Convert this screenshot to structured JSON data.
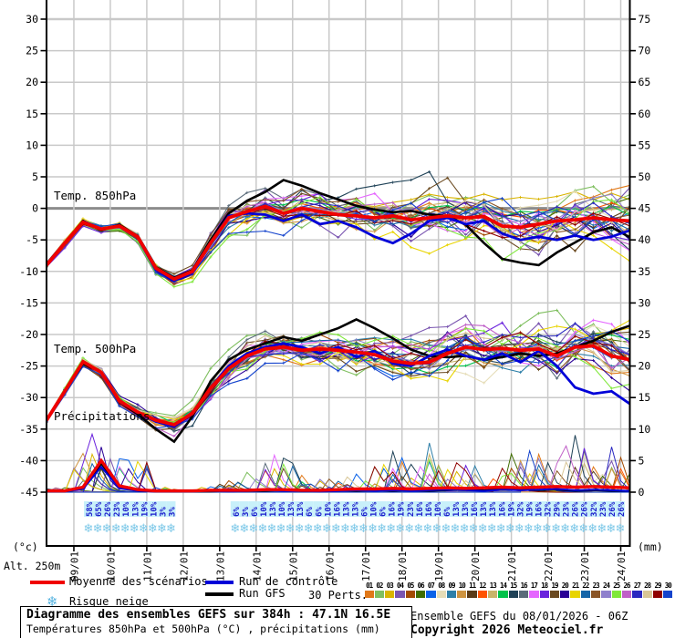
{
  "header": {},
  "axis": {
    "left_unit": "(°c)",
    "alt_label": "Alt. 250m",
    "right_unit": "(mm)",
    "left_ticks": [
      30,
      25,
      20,
      15,
      10,
      5,
      0,
      -5,
      -10,
      -15,
      -20,
      -25,
      -30,
      -35,
      -40,
      -45
    ],
    "right_ticks": [
      75,
      70,
      65,
      60,
      55,
      50,
      45,
      40,
      35,
      30,
      25,
      20,
      15,
      10,
      5,
      0
    ],
    "date_labels": [
      "09/01",
      "10/01",
      "11/01",
      "12/01",
      "13/01",
      "14/01",
      "15/01",
      "16/01",
      "17/01",
      "18/01",
      "19/01",
      "20/01",
      "21/01",
      "22/01",
      "23/01",
      "24/01"
    ]
  },
  "panel_labels": {
    "t850": "Temp. 850hPa",
    "t500": "Temp. 500hPa",
    "precip": "Précipitations"
  },
  "legend": {
    "mean": "Moyenne des scénarios",
    "control": "Run de contrôle",
    "gfs": "Run GFS",
    "perts": "30 Perts.",
    "snow": "Risque neige",
    "snowflake": "❄"
  },
  "title_box": {
    "line1": "Diagramme des ensembles GEFS sur 384h : 47.1N 16.5E",
    "line2": "Températures 850hPa et 500hPa (°C) , précipitations (mm)"
  },
  "footer_right": {
    "line1": "Ensemble GEFS du 08/01/2026 - 06Z",
    "line2": "Copyright 2026 Meteociel.fr"
  },
  "colors": {
    "mean": "#f00000",
    "control": "#0000d8",
    "gfs": "#000000",
    "grid": "#c9c9c9",
    "zero_line": "#8c8c8c",
    "snow_text": "#1a1acc",
    "snow_highlight": "#c8f0fa",
    "snowflake": "#7cc8e8",
    "pert_colors": [
      "#e07818",
      "#7fbf5f",
      "#d9b400",
      "#7a55b0",
      "#a34a00",
      "#3f6d00",
      "#0a62e8",
      "#e6ddb8",
      "#2e7fa8",
      "#cf9440",
      "#5a3a16",
      "#ff5400",
      "#c9b46a",
      "#00c24a",
      "#1f4257",
      "#5a6b7a",
      "#e566ff",
      "#6a22dd",
      "#6b4a20",
      "#2a0096",
      "#e8d400",
      "#1565a8",
      "#8a5526",
      "#8f80cc",
      "#7fe83a",
      "#c060c8",
      "#2a28c0",
      "#d8c696",
      "#8f0000",
      "#1443cc"
    ]
  },
  "pert_numbers": [
    "01",
    "02",
    "03",
    "04",
    "05",
    "06",
    "07",
    "08",
    "09",
    "10",
    "11",
    "12",
    "13",
    "14",
    "15",
    "16",
    "17",
    "18",
    "19",
    "20",
    "21",
    "22",
    "23",
    "24",
    "25",
    "26",
    "27",
    "28",
    "29",
    "30"
  ],
  "chart_data": {
    "type": "line",
    "title": "Diagramme des ensembles GEFS sur 384h : 47.1N 16.5E",
    "run": "GEFS 08/01/2026 06Z",
    "x_axis": {
      "total_hours": 384,
      "hours_step": 12,
      "first_date_hour": 18,
      "date_step_hours": 24
    },
    "y_left": {
      "label": "(°c)",
      "min": -45,
      "max": 30
    },
    "y_right": {
      "label": "(mm)",
      "min": 0,
      "max": 75
    },
    "series": [
      {
        "name": "mean_850",
        "panel": "t850",
        "values": [
          -9,
          -5.5,
          -2.2,
          -3.3,
          -2.8,
          -4.5,
          -9.5,
          -11.2,
          -10,
          -5.5,
          -1.5,
          -0.5,
          0.3,
          -0.8,
          0,
          -0.5,
          -1,
          -1.2,
          -1.5,
          -1.2,
          -1.8,
          -1.5,
          -1.2,
          -1.5,
          -1.3,
          -2.8,
          -3,
          -2.5,
          -2,
          -1.8,
          -1.5,
          -1.8,
          -2
        ]
      },
      {
        "name": "control_850",
        "panel": "t850",
        "values": [
          -9,
          -5.5,
          -2.2,
          -3.3,
          -2.8,
          -4.6,
          -9.7,
          -11.5,
          -10.2,
          -5.5,
          -1.2,
          -0.8,
          -1,
          -2,
          -1,
          -2.5,
          -2,
          -3,
          -4.5,
          -5.5,
          -4,
          -2,
          -1.5,
          -2.5,
          -2,
          -4,
          -5,
          -4.5,
          -5,
          -4.3,
          -5,
          -4.5,
          -3.5
        ]
      },
      {
        "name": "gfs_850",
        "panel": "t850",
        "values": [
          -9,
          -5.4,
          -2,
          -3.5,
          -2.6,
          -4.4,
          -9.3,
          -11,
          -9.8,
          -5,
          -0.8,
          1.2,
          2.6,
          4.5,
          3.6,
          2.4,
          1.4,
          0.4,
          -0.2,
          -0.6,
          -0.4,
          -1,
          -1.2,
          -2.6,
          -5.5,
          -8,
          -8.6,
          -9,
          -7,
          -5.4,
          -3.8,
          -3,
          -4.6
        ]
      },
      {
        "name": "mean_500",
        "panel": "t500",
        "values": [
          -33.6,
          -29,
          -24.3,
          -26,
          -30.5,
          -32.3,
          -33.6,
          -34.3,
          -32.5,
          -28.5,
          -25.4,
          -23.4,
          -22.3,
          -22,
          -22.5,
          -22.3,
          -22.5,
          -22.8,
          -23.2,
          -24.2,
          -24.6,
          -24.4,
          -23,
          -22,
          -22.4,
          -22.2,
          -22.5,
          -22.3,
          -23.4,
          -22,
          -21.8,
          -23.4,
          -24
        ]
      },
      {
        "name": "control_500",
        "panel": "t500",
        "values": [
          -33.6,
          -29,
          -24.3,
          -26,
          -30.6,
          -32.4,
          -33.8,
          -34.6,
          -32.6,
          -28.4,
          -25,
          -23,
          -22,
          -21.4,
          -22,
          -23,
          -22,
          -23.6,
          -22.6,
          -24.6,
          -25,
          -23.4,
          -22.4,
          -23.4,
          -24,
          -23,
          -24.4,
          -22.6,
          -25,
          -28.4,
          -29.4,
          -29,
          -31
        ]
      },
      {
        "name": "gfs_500",
        "panel": "t500",
        "values": [
          -33.6,
          -29,
          -24.6,
          -26,
          -30.6,
          -32.6,
          -35,
          -37,
          -33,
          -27.4,
          -24,
          -22.4,
          -21.4,
          -20.4,
          -21,
          -20,
          -19,
          -17.6,
          -19,
          -20.6,
          -22.4,
          -23.4,
          -23.6,
          -23.4,
          -24,
          -23.6,
          -23,
          -23.4,
          -23,
          -22,
          -21,
          -19.6,
          -18.6
        ]
      },
      {
        "name": "mean_precip",
        "panel": "precip",
        "values": [
          0.2,
          0.2,
          0.8,
          5,
          1,
          0.4,
          0.2,
          0.2,
          0.2,
          0.3,
          0.3,
          0.3,
          0.4,
          0.4,
          0.3,
          0.3,
          0.4,
          0.5,
          0.5,
          0.6,
          0.5,
          0.6,
          0.7,
          0.6,
          0.7,
          0.8,
          0.7,
          0.8,
          0.9,
          0.8,
          0.9,
          0.8,
          0.7
        ]
      },
      {
        "name": "control_precip",
        "panel": "precip",
        "values": [
          0.1,
          0.1,
          0.5,
          4,
          0.6,
          0.2,
          0.1,
          0.1,
          0.1,
          0.2,
          0.1,
          0.2,
          0.3,
          0.2,
          0.2,
          0.1,
          0.2,
          0.3,
          0.2,
          0.3,
          0.2,
          0.3,
          0.4,
          0.3,
          0.2,
          0.4,
          0.3,
          0.4,
          0.5,
          0.3,
          0.4,
          0.3,
          0.2
        ]
      },
      {
        "name": "gfs_precip",
        "panel": "precip",
        "values": [
          0.1,
          0.1,
          0.6,
          4.5,
          0.8,
          0.2,
          0.1,
          0.1,
          0.1,
          0.1,
          0.2,
          0.2,
          0.2,
          0.3,
          0.2,
          0.2,
          0.3,
          0.2,
          0.3,
          0.2,
          0.3,
          0.2,
          0.3,
          0.4,
          0.3,
          0.5,
          0.4,
          0.3,
          0.4,
          0.2,
          0.3,
          0.2,
          0.2
        ]
      }
    ],
    "ensemble": {
      "count": 30,
      "spread_850": [
        0.6,
        0.9,
        1,
        1,
        1.1,
        1.3,
        1.5,
        1.5,
        1.6,
        2.2,
        2.8,
        3.2,
        3.5,
        3.6,
        4,
        4,
        4,
        4.2,
        4.5,
        4.5,
        4.6,
        5,
        5,
        5,
        5.2,
        5.5,
        5.5,
        5.5,
        5.6,
        6,
        6,
        6.5,
        6.5
      ],
      "spread_500": [
        0.5,
        0.7,
        0.8,
        1,
        1.1,
        1.2,
        1.6,
        2,
        2.2,
        2.6,
        3,
        3.4,
        3.5,
        3.5,
        3.6,
        3.6,
        4,
        4,
        4.2,
        4.5,
        4.5,
        4.5,
        4.6,
        5,
        5,
        5,
        5,
        5.2,
        5.5,
        5.5,
        5.5,
        6,
        6
      ],
      "precip_potential": [
        1,
        2,
        6,
        10,
        5,
        8,
        1,
        0.5,
        0.5,
        1,
        2,
        3,
        6,
        5,
        3,
        2,
        2,
        3,
        4,
        6,
        4,
        8,
        4,
        5,
        3,
        5,
        7,
        6,
        5,
        8,
        5,
        7,
        3
      ]
    },
    "snow_risk_pct": [
      [
        0,
        58
      ],
      [
        1,
        65
      ],
      [
        2,
        26
      ],
      [
        3,
        23
      ],
      [
        4,
        10
      ],
      [
        5,
        13
      ],
      [
        6,
        19
      ],
      [
        7,
        10
      ],
      [
        8,
        3
      ],
      [
        9,
        3
      ],
      [
        16,
        6
      ],
      [
        17,
        3
      ],
      [
        18,
        6
      ],
      [
        19,
        10
      ],
      [
        20,
        13
      ],
      [
        21,
        10
      ],
      [
        22,
        13
      ],
      [
        23,
        13
      ],
      [
        24,
        6
      ],
      [
        25,
        6
      ],
      [
        26,
        10
      ],
      [
        27,
        16
      ],
      [
        28,
        13
      ],
      [
        29,
        13
      ],
      [
        30,
        6
      ],
      [
        31,
        10
      ],
      [
        32,
        6
      ],
      [
        33,
        16
      ],
      [
        34,
        19
      ],
      [
        35,
        23
      ],
      [
        36,
        16
      ],
      [
        37,
        16
      ],
      [
        38,
        10
      ],
      [
        39,
        6
      ],
      [
        40,
        13
      ],
      [
        41,
        13
      ],
      [
        42,
        16
      ],
      [
        43,
        13
      ],
      [
        44,
        13
      ],
      [
        45,
        16
      ],
      [
        46,
        19
      ],
      [
        47,
        32
      ],
      [
        48,
        19
      ],
      [
        49,
        16
      ],
      [
        50,
        32
      ],
      [
        51,
        29
      ],
      [
        52,
        23
      ],
      [
        53,
        26
      ],
      [
        54,
        26
      ],
      [
        55,
        32
      ],
      [
        56,
        23
      ],
      [
        57,
        26
      ],
      [
        58,
        26
      ]
    ]
  }
}
